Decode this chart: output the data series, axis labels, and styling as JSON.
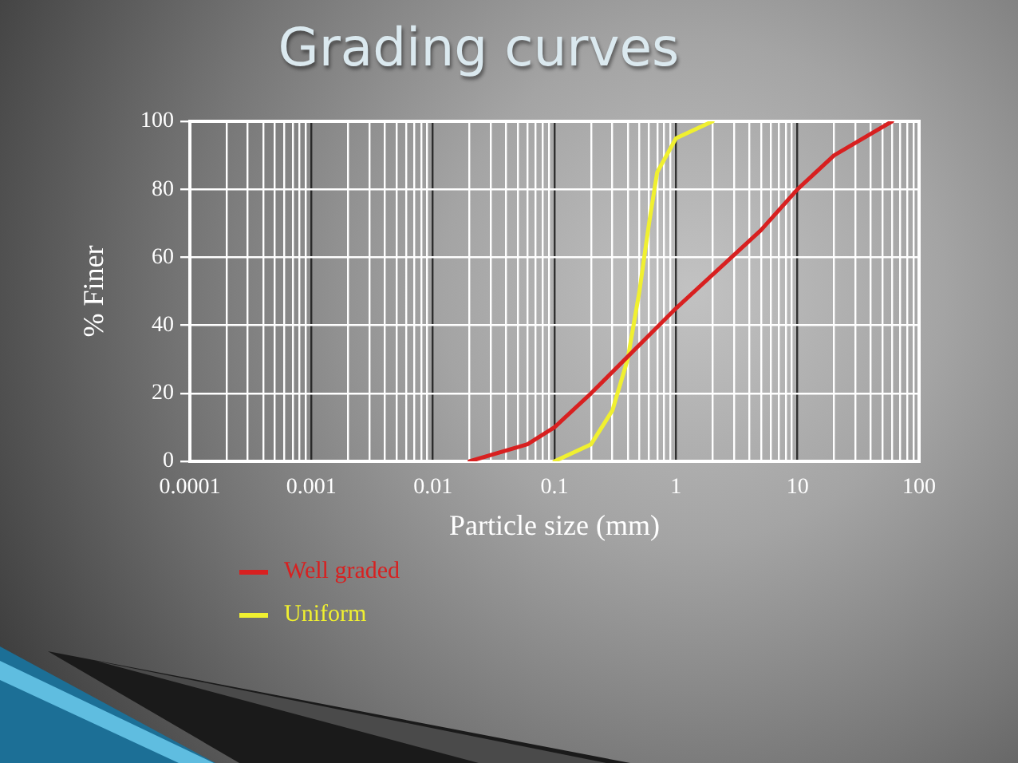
{
  "chart_data": {
    "type": "line",
    "title": "Grading curves",
    "xlabel": "Particle size (mm)",
    "ylabel": "% Finer",
    "log": "x",
    "xlim": [
      0.0001,
      100
    ],
    "xticks": [
      0.0001,
      {
        "value": 0.0002,
        "label": null
      },
      {
        "value": 0.0003,
        "label": null
      },
      {
        "value": 0.0004,
        "label": null
      },
      {
        "value": 0.0005,
        "label": null
      },
      {
        "value": 0.0006,
        "label": null
      },
      {
        "value": 0.0007,
        "label": null
      },
      {
        "value": 0.0008,
        "label": null
      },
      {
        "value": 0.0009,
        "label": null
      },
      0.001,
      {
        "value": 0.002,
        "label": null
      },
      {
        "value": 0.003,
        "label": null
      },
      {
        "value": 0.004,
        "label": null
      },
      {
        "value": 0.005,
        "label": null
      },
      {
        "value": 0.006,
        "label": null
      },
      {
        "value": 0.007,
        "label": null
      },
      {
        "value": 0.008,
        "label": null
      },
      {
        "value": 0.009,
        "label": null
      },
      0.01,
      {
        "value": 0.02,
        "label": null
      },
      {
        "value": 0.03,
        "label": null
      },
      {
        "value": 0.04,
        "label": null
      },
      {
        "value": 0.05,
        "label": null
      },
      {
        "value": 0.06,
        "label": null
      },
      {
        "value": 0.07,
        "label": null
      },
      {
        "value": 0.08,
        "label": null
      },
      {
        "value": 0.09,
        "label": null
      },
      0.1,
      {
        "value": 0.2,
        "label": null
      },
      {
        "value": 0.3,
        "label": null
      },
      {
        "value": 0.4,
        "label": null
      },
      {
        "value": 0.5,
        "label": null
      },
      {
        "value": 0.6,
        "label": null
      },
      {
        "value": 0.7,
        "label": null
      },
      {
        "value": 0.8,
        "label": null
      },
      {
        "value": 0.9,
        "label": null
      },
      1,
      {
        "value": 2,
        "label": null
      },
      {
        "value": 3,
        "label": null
      },
      {
        "value": 4,
        "label": null
      },
      {
        "value": 5,
        "label": null
      },
      {
        "value": 6,
        "label": null
      },
      {
        "value": 7,
        "label": null
      },
      {
        "value": 8,
        "label": null
      },
      {
        "value": 9,
        "label": null
      },
      10,
      {
        "value": 20,
        "label": null
      },
      {
        "value": 30,
        "label": null
      },
      {
        "value": 40,
        "label": null
      },
      {
        "value": 50,
        "label": null
      },
      {
        "value": 60,
        "label": null
      },
      {
        "value": 70,
        "label": null
      },
      {
        "value": 80,
        "label": null
      },
      {
        "value": 90,
        "label": null
      },
      100
    ],
    "ylim": [
      0,
      100
    ],
    "yticks": [
      0,
      20,
      40,
      60,
      80,
      100
    ],
    "grid": true,
    "legend": "bottom",
    "marker": "none",
    "line_style": "solid",
    "series": [
      {
        "name": "Well graded",
        "color": "#d82020",
        "x": [
          0.02,
          0.06,
          0.1,
          0.2,
          1,
          5,
          10,
          20,
          60
        ],
        "values": [
          0,
          5,
          10,
          20,
          45,
          68,
          80,
          90,
          100
        ]
      },
      {
        "name": "Uniform",
        "color": "#f0f030",
        "x": [
          0.1,
          0.2,
          0.3,
          0.4,
          0.5,
          0.6,
          0.7,
          1,
          2
        ],
        "values": [
          0,
          5,
          15,
          30,
          50,
          70,
          85,
          95,
          100
        ]
      }
    ]
  }
}
